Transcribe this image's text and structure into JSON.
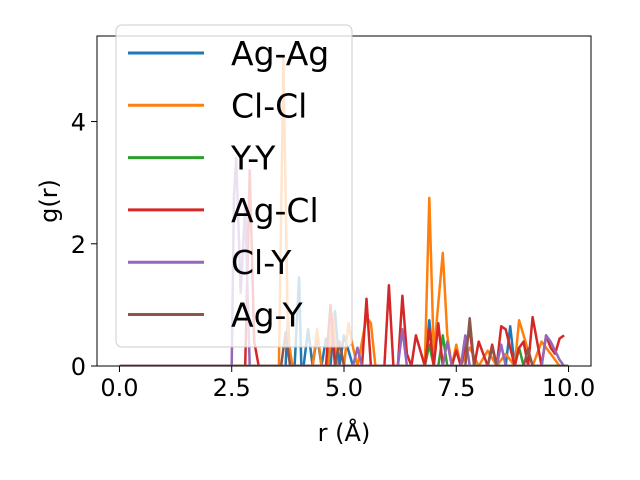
{
  "chart_data": {
    "type": "line",
    "xlabel": "r (Å)",
    "ylabel": "g(r)",
    "xlim": [
      -0.5,
      10.5
    ],
    "ylim": [
      0,
      5.4
    ],
    "xticks": [
      0.0,
      2.5,
      5.0,
      7.5,
      10.0
    ],
    "xtick_labels": [
      "0.0",
      "2.5",
      "5.0",
      "7.5",
      "10.0"
    ],
    "yticks": [
      0,
      2,
      4
    ],
    "ytick_labels": [
      "0",
      "2",
      "4"
    ],
    "grid": false,
    "legend_position": "upper-left",
    "series": [
      {
        "name": "Ag-Ag",
        "color": "#1f77b4",
        "x": [
          0,
          3.7,
          3.75,
          3.8,
          3.9,
          4.0,
          4.05,
          4.1,
          4.2,
          4.3,
          4.4,
          4.5,
          4.6,
          4.7,
          4.8,
          4.9,
          5.0,
          5.2,
          6.8,
          6.9,
          7.0,
          8.6,
          8.7,
          8.8,
          10.0
        ],
        "y": [
          0,
          0,
          0.8,
          0,
          0,
          1.45,
          0,
          0,
          0.6,
          0,
          0.5,
          0,
          0.45,
          0,
          0.9,
          0,
          0.5,
          0,
          0,
          0.75,
          0,
          0,
          0.65,
          0,
          0
        ]
      },
      {
        "name": "Cl-Cl",
        "color": "#ff7f0e",
        "x": [
          0,
          3.55,
          3.65,
          3.75,
          3.85,
          4.3,
          4.4,
          4.5,
          4.65,
          4.75,
          4.85,
          5.0,
          5.1,
          5.2,
          5.3,
          5.5,
          5.6,
          5.7,
          6.8,
          6.9,
          7.0,
          7.2,
          7.3,
          7.4,
          7.5,
          7.6,
          7.8,
          8.0,
          8.2,
          8.4,
          8.6,
          8.8,
          8.9,
          9.0,
          9.2,
          9.4,
          9.6,
          9.8,
          10.0
        ],
        "y": [
          0,
          0,
          5.05,
          0.5,
          0,
          0,
          0.6,
          0,
          0,
          0.85,
          0,
          0,
          0.7,
          0.3,
          0,
          0.8,
          0.7,
          0,
          0,
          2.75,
          0.2,
          1.85,
          0.5,
          0,
          0.35,
          0,
          0.3,
          0,
          0.25,
          0,
          0.2,
          0,
          0.75,
          0.5,
          0,
          0.4,
          0.2,
          0,
          0
        ]
      },
      {
        "name": "Y-Y",
        "color": "#2ca02c",
        "x": [
          0,
          6.8,
          6.9,
          7.0,
          7.1,
          7.2,
          7.3,
          8.8,
          8.9,
          9.0,
          10.0
        ],
        "y": [
          0,
          0,
          0.35,
          0,
          0,
          0.5,
          0,
          0,
          0.3,
          0,
          0
        ]
      },
      {
        "name": "Ag-Cl",
        "color": "#d62728",
        "x": [
          0,
          2.8,
          2.9,
          3.0,
          3.1,
          4.6,
          4.7,
          4.8,
          5.4,
          5.5,
          5.6,
          5.9,
          6.0,
          6.1,
          6.2,
          6.3,
          6.4,
          6.5,
          6.6,
          6.8,
          6.9,
          7.0,
          7.1,
          7.2,
          7.4,
          7.5,
          7.6,
          7.8,
          7.9,
          8.0,
          8.2,
          8.3,
          8.4,
          8.5,
          8.6,
          8.7,
          8.8,
          8.9,
          9.0,
          9.1,
          9.2,
          9.3,
          9.4,
          9.5,
          9.6,
          9.7,
          9.8,
          9.9
        ],
        "y": [
          0,
          0,
          3.2,
          0.4,
          0,
          0,
          1.0,
          0,
          0,
          1.1,
          0,
          0,
          1.32,
          0,
          0,
          1.15,
          0.2,
          0,
          0.5,
          0,
          0.6,
          0,
          0.7,
          0,
          0,
          0.25,
          0,
          0.6,
          0,
          0.4,
          0,
          0.35,
          0,
          0.65,
          0.6,
          0.3,
          0,
          0.3,
          0.4,
          0,
          0.8,
          0.4,
          0,
          0.5,
          0.3,
          0.2,
          0.45,
          0.5
        ]
      },
      {
        "name": "Cl-Y",
        "color": "#9467bd",
        "x": [
          0,
          2.5,
          2.55,
          2.6,
          2.7,
          2.8,
          2.9,
          5.2,
          5.3,
          5.4,
          6.2,
          6.3,
          6.4,
          7.2,
          7.3,
          7.4,
          7.6,
          7.7,
          7.8,
          8.4,
          8.5,
          8.6,
          9.4,
          9.5,
          9.6,
          9.8,
          9.9
        ],
        "y": [
          0,
          0,
          2.8,
          3.4,
          1.2,
          2.6,
          0,
          0,
          0.3,
          0,
          0,
          0.6,
          0,
          0,
          0.4,
          0,
          0,
          0.5,
          0,
          0,
          0.35,
          0,
          0,
          0.5,
          0.4,
          0.1,
          0
        ]
      },
      {
        "name": "Ag-Y",
        "color": "#8c564b",
        "x": [
          0,
          3.6,
          3.7,
          3.8,
          4.8,
          4.9,
          5.0,
          7.7,
          7.8,
          7.9,
          8.2,
          8.3,
          8.4,
          9.0,
          9.1,
          9.2,
          10.0
        ],
        "y": [
          0,
          0,
          0.55,
          0,
          0,
          0.4,
          0,
          0,
          0.78,
          0,
          0,
          0.3,
          0,
          0,
          0.28,
          0,
          0
        ]
      }
    ]
  }
}
